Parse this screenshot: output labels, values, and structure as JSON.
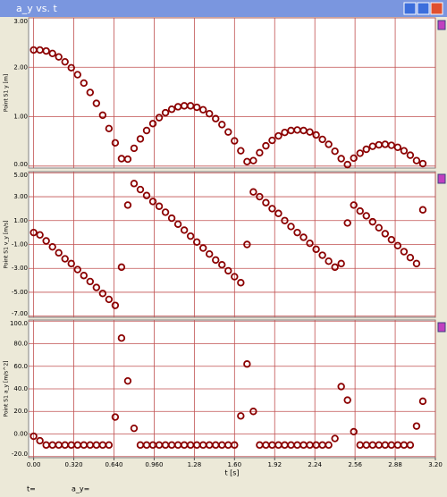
{
  "window": {
    "title": "a_y vs. t"
  },
  "status": {
    "t": "t=",
    "a_y": "a_y="
  },
  "chart_data": [
    {
      "type": "scatter",
      "ylabel": "Point S1 y [m]",
      "color": "#8b0000",
      "grid": true,
      "xlim": [
        -0.04,
        3.2
      ],
      "ylim": [
        -0.04,
        3.0
      ],
      "yticks": [
        {
          "value": 0,
          "label": "0.00"
        },
        {
          "value": 1,
          "label": "1.00"
        },
        {
          "value": 2,
          "label": "2.00"
        },
        {
          "value": 3,
          "label": "3.00"
        }
      ],
      "x": [
        0,
        0.05,
        0.1,
        0.15,
        0.2,
        0.25,
        0.3,
        0.35,
        0.4,
        0.45,
        0.5,
        0.55,
        0.6,
        0.65,
        0.7,
        0.75,
        0.8,
        0.85,
        0.9,
        0.95,
        1,
        1.05,
        1.1,
        1.15,
        1.2,
        1.25,
        1.3,
        1.35,
        1.4,
        1.45,
        1.5,
        1.55,
        1.6,
        1.65,
        1.7,
        1.75,
        1.8,
        1.85,
        1.9,
        1.95,
        2,
        2.05,
        2.1,
        2.15,
        2.2,
        2.25,
        2.3,
        2.35,
        2.4,
        2.45,
        2.5,
        2.55,
        2.6,
        2.65,
        2.7,
        2.75,
        2.8,
        2.85,
        2.9,
        2.95,
        3,
        3.05,
        3.1
      ],
      "values": [
        2.35,
        2.35,
        2.33,
        2.28,
        2.21,
        2.11,
        1.99,
        1.85,
        1.68,
        1.49,
        1.27,
        1.03,
        0.76,
        0.47,
        0.15,
        0.14,
        0.36,
        0.55,
        0.72,
        0.86,
        0.98,
        1.08,
        1.15,
        1.2,
        1.22,
        1.22,
        1.19,
        1.14,
        1.06,
        0.96,
        0.84,
        0.69,
        0.51,
        0.31,
        0.09,
        0.11,
        0.27,
        0.41,
        0.52,
        0.61,
        0.68,
        0.72,
        0.73,
        0.72,
        0.69,
        0.63,
        0.54,
        0.44,
        0.3,
        0.15,
        0.03,
        0.16,
        0.26,
        0.34,
        0.4,
        0.43,
        0.44,
        0.42,
        0.38,
        0.31,
        0.22,
        0.11,
        0.05
      ]
    },
    {
      "type": "scatter",
      "ylabel": "Point S1 v_y [m/s]",
      "color": "#8b0000",
      "grid": true,
      "xlim": [
        -0.04,
        3.2
      ],
      "ylim": [
        -7.1,
        5.1
      ],
      "yticks": [
        {
          "value": 5,
          "label": "5.00"
        },
        {
          "value": 3,
          "label": "3.00"
        },
        {
          "value": 1,
          "label": "1.00"
        },
        {
          "value": -1,
          "label": "-1.00"
        },
        {
          "value": -3,
          "label": "-3.00"
        },
        {
          "value": -5,
          "label": "-5.00"
        },
        {
          "value": -7,
          "label": "-7.00"
        }
      ],
      "x": [
        0,
        0.05,
        0.1,
        0.15,
        0.2,
        0.25,
        0.3,
        0.35,
        0.4,
        0.45,
        0.5,
        0.55,
        0.6,
        0.65,
        0.7,
        0.75,
        0.8,
        0.85,
        0.9,
        0.95,
        1,
        1.05,
        1.1,
        1.15,
        1.2,
        1.25,
        1.3,
        1.35,
        1.4,
        1.45,
        1.5,
        1.55,
        1.6,
        1.65,
        1.7,
        1.75,
        1.8,
        1.85,
        1.9,
        1.95,
        2,
        2.05,
        2.1,
        2.15,
        2.2,
        2.25,
        2.3,
        2.35,
        2.4,
        2.45,
        2.5,
        2.55,
        2.6,
        2.65,
        2.7,
        2.75,
        2.8,
        2.85,
        2.9,
        2.95,
        3,
        3.05,
        3.1
      ],
      "values": [
        0,
        -0.2,
        -0.7,
        -1.2,
        -1.7,
        -2.2,
        -2.6,
        -3.1,
        -3.6,
        -4.1,
        -4.6,
        -5.1,
        -5.6,
        -6.1,
        -2.9,
        2.3,
        4.1,
        3.6,
        3.1,
        2.6,
        2.2,
        1.7,
        1.2,
        0.7,
        0.2,
        -0.3,
        -0.8,
        -1.3,
        -1.8,
        -2.3,
        -2.7,
        -3.2,
        -3.7,
        -4.2,
        -1,
        3.4,
        3,
        2.5,
        2,
        1.6,
        1,
        0.5,
        0,
        -0.4,
        -0.9,
        -1.4,
        -1.9,
        -2.4,
        -2.9,
        -2.6,
        0.8,
        2.3,
        1.8,
        1.4,
        0.9,
        0.4,
        -0.1,
        -0.6,
        -1.1,
        -1.6,
        -2.1,
        -2.6,
        1.9
      ]
    },
    {
      "type": "scatter",
      "ylabel": "Point S1 a_y [m/s^2]",
      "xlabel": "t [s]",
      "color": "#8b0000",
      "grid": true,
      "xlim": [
        -0.04,
        3.2
      ],
      "ylim": [
        -21,
        101
      ],
      "xticks": [
        {
          "value": 0,
          "label": "0.00"
        },
        {
          "value": 0.32,
          "label": "0.320"
        },
        {
          "value": 0.64,
          "label": "0.640"
        },
        {
          "value": 0.96,
          "label": "0.960"
        },
        1.28,
        {
          "value": 1.6,
          "label": "1.60"
        },
        1.92,
        2.24,
        2.56,
        2.88,
        {
          "value": 3.2,
          "label": "3.20"
        }
      ],
      "yticks": [
        {
          "value": 100,
          "label": "100.0"
        },
        {
          "value": 80,
          "label": "80.0"
        },
        {
          "value": 60,
          "label": "60.0"
        },
        {
          "value": 40,
          "label": "40.0"
        },
        {
          "value": 20,
          "label": "20.0"
        },
        {
          "value": 0,
          "label": "0.00"
        },
        {
          "value": -20,
          "label": "-20.0"
        }
      ],
      "x": [
        0,
        0.05,
        0.1,
        0.15,
        0.2,
        0.25,
        0.3,
        0.35,
        0.4,
        0.45,
        0.5,
        0.55,
        0.6,
        0.65,
        0.7,
        0.75,
        0.8,
        0.85,
        0.9,
        0.95,
        1,
        1.05,
        1.1,
        1.15,
        1.2,
        1.25,
        1.3,
        1.35,
        1.4,
        1.45,
        1.5,
        1.55,
        1.6,
        1.65,
        1.7,
        1.75,
        1.8,
        1.85,
        1.9,
        1.95,
        2,
        2.05,
        2.1,
        2.15,
        2.2,
        2.25,
        2.3,
        2.35,
        2.4,
        2.45,
        2.5,
        2.55,
        2.6,
        2.65,
        2.7,
        2.75,
        2.8,
        2.85,
        2.9,
        2.95,
        3,
        3.05,
        3.1
      ],
      "values": [
        -2,
        -6,
        -9.8,
        -9.8,
        -9.8,
        -9.8,
        -9.8,
        -9.8,
        -9.8,
        -9.8,
        -9.8,
        -9.8,
        -9.8,
        15,
        85,
        47,
        5,
        -9.8,
        -9.8,
        -9.8,
        -9.8,
        -9.8,
        -9.8,
        -9.8,
        -9.8,
        -9.8,
        -9.8,
        -9.8,
        -9.8,
        -9.8,
        -9.8,
        -9.8,
        -9.8,
        16,
        62,
        20,
        -9.8,
        -9.8,
        -9.8,
        -9.8,
        -9.8,
        -9.8,
        -9.8,
        -9.8,
        -9.8,
        -9.8,
        -9.8,
        -9.8,
        -4,
        42,
        30,
        2,
        -9.8,
        -9.8,
        -9.8,
        -9.8,
        -9.8,
        -9.8,
        -9.8,
        -9.8,
        -9.8,
        7,
        29
      ]
    }
  ]
}
